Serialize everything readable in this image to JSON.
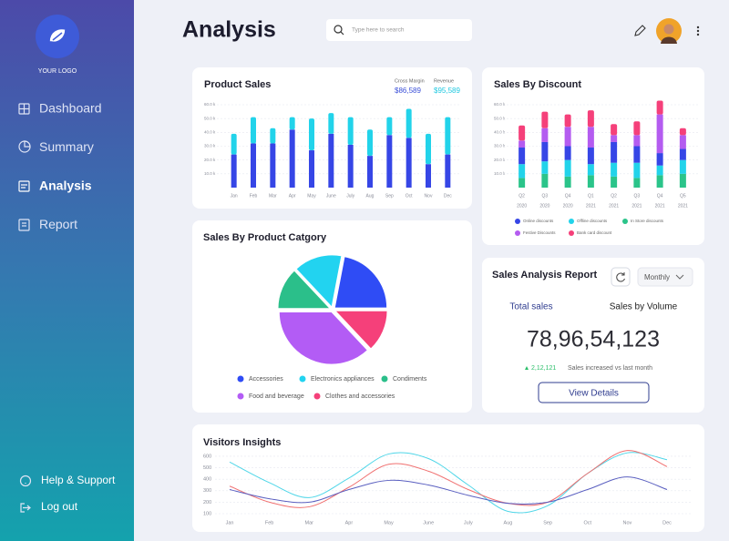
{
  "sidebar": {
    "logo_text": "YOUR LOGO",
    "nav": [
      {
        "label": "Dashboard"
      },
      {
        "label": "Summary"
      },
      {
        "label": "Analysis",
        "active": true
      },
      {
        "label": "Report"
      }
    ],
    "footer": [
      "Help & Support",
      "Log out"
    ]
  },
  "header": {
    "title": "Analysis",
    "search_placeholder": "Type here to search"
  },
  "chart_data": [
    {
      "type": "bar",
      "stacked": true,
      "title": "Product Sales",
      "kpis": [
        {
          "label": "Cross Margin",
          "value": "$86,589",
          "color": "#3a4fd8"
        },
        {
          "label": "Revenue",
          "value": "$95,589",
          "color": "#1fc8e0"
        }
      ],
      "categories": [
        "Jan",
        "Feb",
        "Mar",
        "Apr",
        "May",
        "June",
        "July",
        "Aug",
        "Sep",
        "Oct",
        "Nov",
        "Dec"
      ],
      "series": [
        {
          "color": "#3646e6",
          "values": [
            24,
            32,
            32,
            42,
            27,
            39,
            31,
            23,
            38,
            36,
            17,
            24
          ]
        },
        {
          "color": "#22d3ea",
          "values": [
            15,
            19,
            11,
            9,
            23,
            15,
            20,
            19,
            13,
            21,
            22,
            27
          ]
        }
      ],
      "ylim": [
        0,
        60
      ],
      "yticks": [
        {
          "value": 10,
          "label": "10.0 k"
        },
        {
          "value": 20,
          "label": "20.0 k"
        },
        {
          "value": 30,
          "label": "30.0 k"
        },
        {
          "value": 40,
          "label": "40.0 k"
        },
        {
          "value": 50,
          "label": "50.0 k"
        },
        {
          "value": 60,
          "label": "60.0 k"
        }
      ],
      "grid": true
    },
    {
      "type": "bar",
      "stacked": true,
      "title": "Sales By Discount",
      "categories": [
        [
          "Q2",
          "2020"
        ],
        [
          "Q3",
          "2020"
        ],
        [
          "Q4",
          "2020"
        ],
        [
          "Q1",
          "2021"
        ],
        [
          "Q2",
          "2021"
        ],
        [
          "Q3",
          "2021"
        ],
        [
          "Q4",
          "2021"
        ],
        [
          "Q5",
          "2021"
        ]
      ],
      "series": [
        {
          "name": "In Store discounts",
          "color": "#2bc48a",
          "values": [
            7,
            10,
            8,
            9,
            8,
            7,
            9,
            10
          ]
        },
        {
          "name": "Offline discounts",
          "color": "#22d3ea",
          "values": [
            10,
            9,
            12,
            8,
            10,
            11,
            7,
            10
          ]
        },
        {
          "name": "Online discounts",
          "color": "#3646e6",
          "values": [
            12,
            14,
            10,
            12,
            15,
            12,
            9,
            8
          ]
        },
        {
          "name": "Festive Discounts",
          "color": "#b45cf0",
          "values": [
            5,
            10,
            14,
            15,
            5,
            8,
            28,
            10
          ]
        },
        {
          "name": "Bank card discount",
          "color": "#f5407a",
          "values": [
            11,
            12,
            9,
            12,
            8,
            10,
            10,
            5
          ]
        }
      ],
      "ylim": [
        0,
        60
      ],
      "yticks": [
        {
          "value": 10,
          "label": "10.0 k"
        },
        {
          "value": 20,
          "label": "20.0 k"
        },
        {
          "value": 30,
          "label": "30.0 k"
        },
        {
          "value": 40,
          "label": "40.0 k"
        },
        {
          "value": 50,
          "label": "50.0 k"
        },
        {
          "value": 60,
          "label": "60.0 k"
        }
      ],
      "grid": true
    },
    {
      "type": "pie",
      "title": "Sales By Product Catgory",
      "categories": [
        "Accessories",
        "Electronics appliances",
        "Condiments",
        "Food and beverage",
        "Clothes and accessories"
      ],
      "values": [
        22,
        15,
        13,
        37,
        13
      ],
      "colors": [
        "#2f4cf5",
        "#22d3f0",
        "#2bbf8a",
        "#b35cf5",
        "#f5407a"
      ]
    },
    {
      "type": "line",
      "title": "Visitors Insights",
      "categories": [
        "Jan",
        "Feb",
        "Mar",
        "Apr",
        "May",
        "June",
        "July",
        "Aug",
        "Sep",
        "Oct",
        "Nov",
        "Dec"
      ],
      "series": [
        {
          "color": "#4fd6e8",
          "values": [
            550,
            370,
            240,
            410,
            620,
            580,
            350,
            120,
            170,
            450,
            630,
            570
          ]
        },
        {
          "color": "#f07070",
          "values": [
            340,
            200,
            160,
            330,
            530,
            470,
            310,
            190,
            200,
            450,
            650,
            510
          ]
        },
        {
          "color": "#5a5fc0",
          "values": [
            310,
            230,
            200,
            310,
            390,
            350,
            260,
            190,
            200,
            310,
            420,
            310
          ]
        }
      ],
      "ylim": [
        50,
        660
      ],
      "yticks": [
        100,
        200,
        300,
        400,
        500,
        600
      ],
      "grid": true
    }
  ],
  "report": {
    "title": "Sales Analysis Report",
    "period": "Monthly",
    "tabs": [
      "Total sales",
      "Sales by Volume"
    ],
    "total": "78,96,54,123",
    "change": "2,12,121",
    "change_text": "Sales increased vs last month",
    "button": "View Details"
  }
}
